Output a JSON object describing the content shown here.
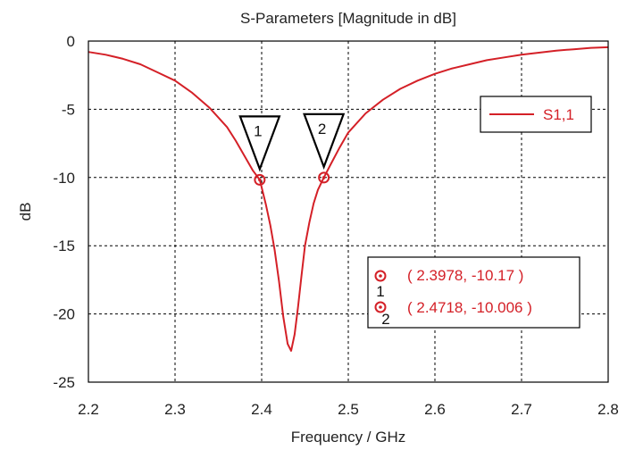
{
  "chart_data": {
    "type": "line",
    "title": "S-Parameters [Magnitude in dB]",
    "xlabel": "Frequency / GHz",
    "ylabel": "dB",
    "xlim": [
      2.2,
      2.8
    ],
    "ylim": [
      -25,
      0
    ],
    "xticks": [
      "2.2",
      "2.3",
      "2.4",
      "2.5",
      "2.6",
      "2.7",
      "2.8"
    ],
    "yticks": [
      "0",
      "-5",
      "-10",
      "-15",
      "-20",
      "-25"
    ],
    "grid": true,
    "legend_position": "top-right",
    "series": [
      {
        "name": "S1,1",
        "color": "#d42027",
        "x": [
          2.2,
          2.22,
          2.24,
          2.26,
          2.28,
          2.3,
          2.32,
          2.34,
          2.36,
          2.37,
          2.38,
          2.39,
          2.3978,
          2.405,
          2.41,
          2.415,
          2.42,
          2.425,
          2.43,
          2.434,
          2.438,
          2.442,
          2.446,
          2.45,
          2.455,
          2.46,
          2.465,
          2.4718,
          2.48,
          2.49,
          2.5,
          2.52,
          2.54,
          2.56,
          2.58,
          2.6,
          2.62,
          2.64,
          2.66,
          2.68,
          2.7,
          2.72,
          2.74,
          2.76,
          2.78,
          2.8
        ],
        "y": [
          -0.8,
          -1.0,
          -1.3,
          -1.7,
          -2.3,
          -2.9,
          -3.8,
          -4.9,
          -6.3,
          -7.3,
          -8.4,
          -9.5,
          -10.17,
          -12.0,
          -13.5,
          -15.3,
          -17.6,
          -20.2,
          -22.2,
          -22.7,
          -21.5,
          -19.5,
          -17.2,
          -15.0,
          -13.3,
          -11.9,
          -10.9,
          -10.006,
          -9.0,
          -7.8,
          -6.7,
          -5.3,
          -4.3,
          -3.5,
          -2.9,
          -2.4,
          -2.0,
          -1.7,
          -1.4,
          -1.2,
          -1.0,
          -0.85,
          -0.7,
          -0.6,
          -0.5,
          -0.45
        ]
      }
    ],
    "markers": [
      {
        "id": "1",
        "x": 2.3978,
        "y": -10.17,
        "label": "( 2.3978, -10.17 )"
      },
      {
        "id": "2",
        "x": 2.4718,
        "y": -10.006,
        "label": "( 2.4718, -10.006 )"
      }
    ]
  }
}
